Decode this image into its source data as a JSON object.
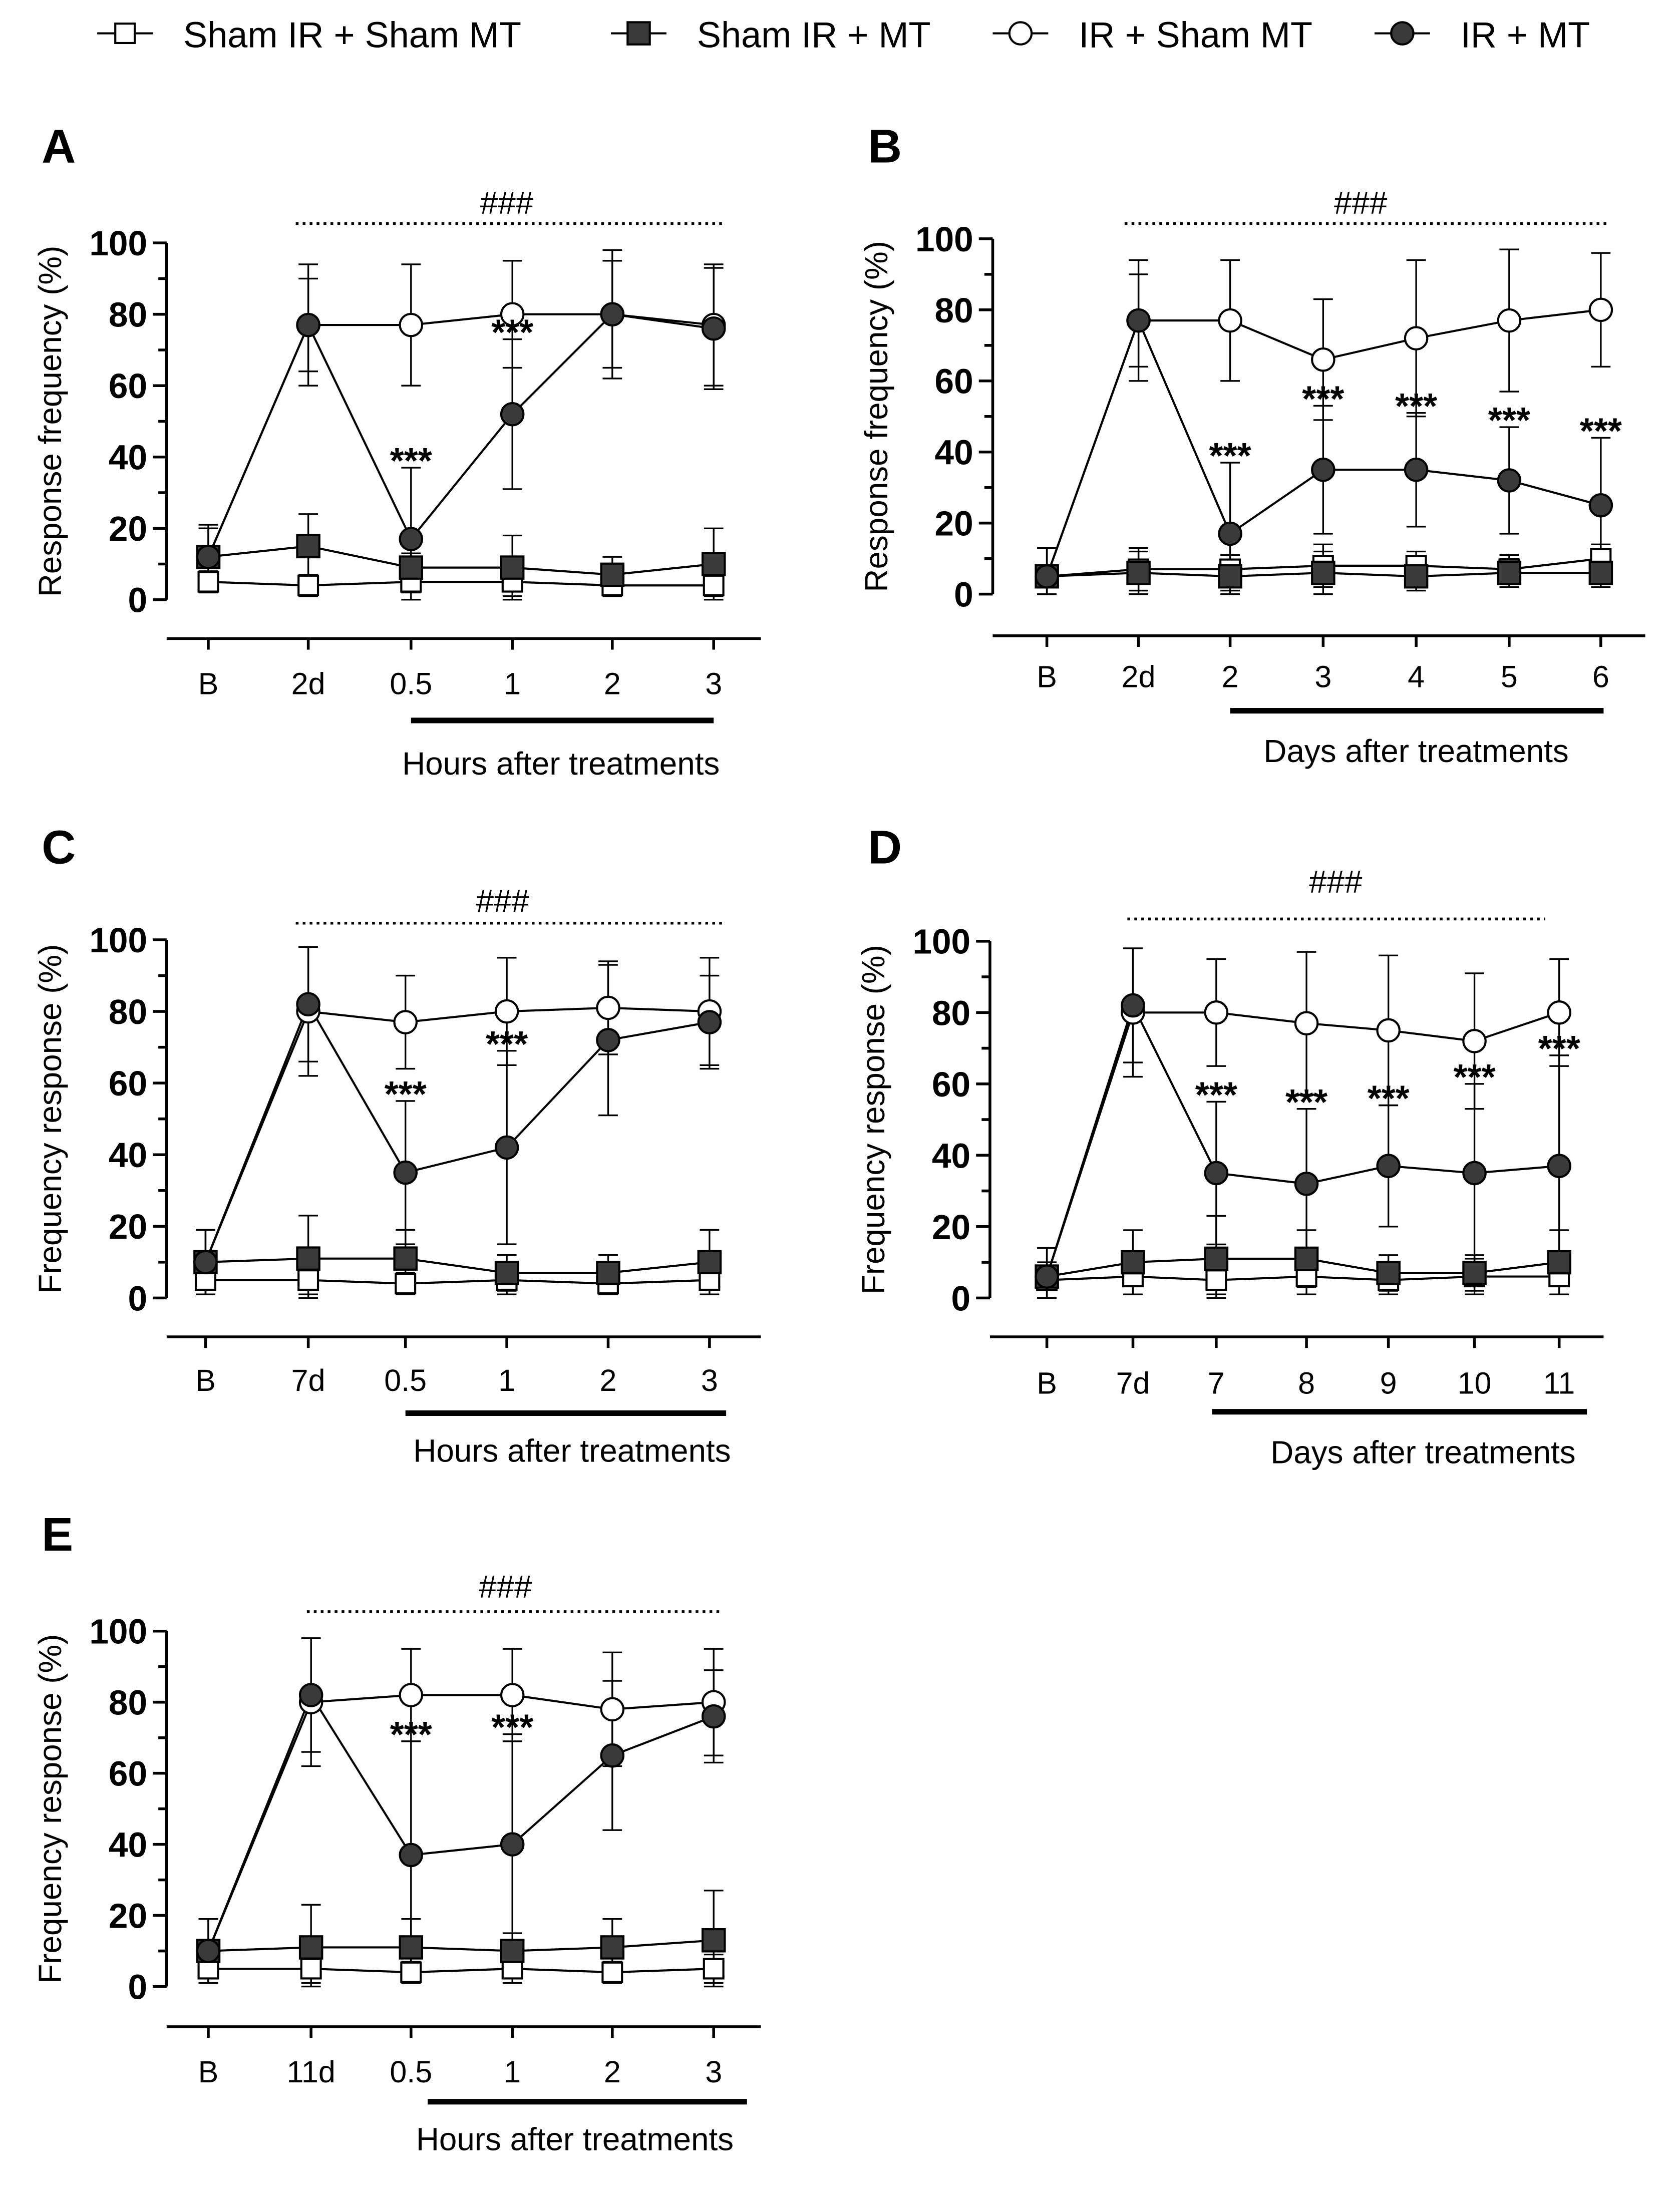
{
  "chart_data": [
    {
      "panel": "A",
      "type": "line",
      "ylabel": "Response frequency (%)",
      "xlabel": "Hours after treatments",
      "categories": [
        "B",
        "2d",
        "0.5",
        "1",
        "2",
        "3"
      ],
      "treated_from_index": 2,
      "ylim": [
        0,
        100
      ],
      "yticks": [
        0,
        20,
        40,
        60,
        80,
        100
      ],
      "hash_label": "###",
      "hash_range": [
        1,
        5
      ],
      "star_label": "***",
      "stars_at": [
        2,
        3
      ],
      "series": [
        {
          "name": "Sham IR + Sham MT",
          "values": [
            5,
            4,
            5,
            5,
            4,
            4
          ],
          "err": [
            3,
            3,
            3,
            4,
            3,
            3
          ]
        },
        {
          "name": "Sham IR + MT",
          "values": [
            12,
            15,
            9,
            9,
            7,
            10
          ],
          "err": [
            9,
            9,
            4,
            9,
            5,
            10
          ]
        },
        {
          "name": "IR + Sham MT",
          "values": [
            12,
            77,
            77,
            80,
            80,
            77
          ],
          "err": [
            8,
            17,
            17,
            15,
            18,
            17
          ]
        },
        {
          "name": "IR + MT",
          "values": [
            12,
            77,
            17,
            52,
            80,
            76
          ],
          "err": [
            8,
            13,
            20,
            21,
            15,
            17
          ]
        }
      ]
    },
    {
      "panel": "B",
      "type": "line",
      "ylabel": "Response frequency (%)",
      "xlabel": "Days after treatments",
      "categories": [
        "B",
        "2d",
        "2",
        "3",
        "4",
        "5",
        "6"
      ],
      "treated_from_index": 2,
      "ylim": [
        0,
        100
      ],
      "yticks": [
        0,
        20,
        40,
        60,
        80,
        100
      ],
      "hash_label": "###",
      "hash_range": [
        1,
        6
      ],
      "star_label": "***",
      "stars_at": [
        2,
        3,
        4,
        5,
        6
      ],
      "series": [
        {
          "name": "Sham IR + Sham MT",
          "values": [
            5,
            7,
            7,
            8,
            8,
            7,
            10
          ],
          "err": [
            8,
            6,
            4,
            6,
            4,
            4,
            4
          ]
        },
        {
          "name": "Sham IR + MT",
          "values": [
            5,
            6,
            5,
            6,
            5,
            6,
            6
          ],
          "err": [
            8,
            6,
            4,
            6,
            4,
            4,
            4
          ]
        },
        {
          "name": "IR + Sham MT",
          "values": [
            5,
            77,
            77,
            66,
            72,
            77,
            80
          ],
          "err": [
            8,
            17,
            17,
            17,
            22,
            20,
            16
          ]
        },
        {
          "name": "IR + MT",
          "values": [
            5,
            77,
            17,
            35,
            35,
            32,
            25
          ],
          "err": [
            8,
            13,
            20,
            18,
            16,
            15,
            19
          ]
        }
      ]
    },
    {
      "panel": "C",
      "type": "line",
      "ylabel": "Frequency response (%)",
      "xlabel": "Hours after treatments",
      "categories": [
        "B",
        "7d",
        "0.5",
        "1",
        "2",
        "3"
      ],
      "treated_from_index": 2,
      "ylim": [
        0,
        100
      ],
      "yticks": [
        0,
        20,
        40,
        60,
        80,
        100
      ],
      "hash_label": "###",
      "hash_range": [
        1,
        5
      ],
      "star_label": "***",
      "stars_at": [
        2,
        3
      ],
      "series": [
        {
          "name": "Sham IR + Sham MT",
          "values": [
            5,
            5,
            4,
            5,
            4,
            5
          ],
          "err": [
            4,
            4,
            3,
            4,
            3,
            4
          ]
        },
        {
          "name": "Sham IR + MT",
          "values": [
            10,
            11,
            11,
            7,
            7,
            10
          ],
          "err": [
            9,
            12,
            8,
            5,
            5,
            9
          ]
        },
        {
          "name": "IR + Sham MT",
          "values": [
            10,
            80,
            77,
            80,
            81,
            80
          ],
          "err": [
            9,
            18,
            13,
            15,
            13,
            15
          ]
        },
        {
          "name": "IR + MT",
          "values": [
            10,
            82,
            35,
            42,
            72,
            77
          ],
          "err": [
            9,
            16,
            20,
            27,
            21,
            13
          ]
        }
      ]
    },
    {
      "panel": "D",
      "type": "line",
      "ylabel": "Frequency response (%)",
      "xlabel": "Days after treatments",
      "categories": [
        "B",
        "7d",
        "7",
        "8",
        "9",
        "10",
        "11"
      ],
      "treated_from_index": 2,
      "ylim": [
        0,
        100
      ],
      "yticks": [
        0,
        20,
        40,
        60,
        80,
        100
      ],
      "hash_label": "###",
      "hash_range": [
        1,
        5.8
      ],
      "star_label": "***",
      "stars_at": [
        2,
        3,
        4,
        5,
        6
      ],
      "series": [
        {
          "name": "Sham IR + Sham MT",
          "values": [
            5,
            6,
            5,
            6,
            5,
            6,
            6
          ],
          "err": [
            5,
            5,
            4,
            5,
            4,
            5,
            5
          ]
        },
        {
          "name": "Sham IR + MT",
          "values": [
            6,
            10,
            11,
            11,
            7,
            7,
            10
          ],
          "err": [
            8,
            9,
            12,
            8,
            5,
            5,
            9
          ]
        },
        {
          "name": "IR + Sham MT",
          "values": [
            6,
            80,
            80,
            77,
            75,
            72,
            80
          ],
          "err": [
            8,
            18,
            15,
            20,
            21,
            19,
            15
          ]
        },
        {
          "name": "IR + MT",
          "values": [
            6,
            82,
            35,
            32,
            37,
            35,
            37
          ],
          "err": [
            8,
            16,
            20,
            21,
            17,
            25,
            31
          ]
        }
      ]
    },
    {
      "panel": "E",
      "type": "line",
      "ylabel": "Frequency response (%)",
      "xlabel": "Hours after treatments",
      "categories": [
        "B",
        "11d",
        "0.5",
        "1",
        "2",
        "3"
      ],
      "treated_from_index": 2,
      "ylim": [
        0,
        100
      ],
      "yticks": [
        0,
        20,
        40,
        60,
        80,
        100
      ],
      "hash_label": "###",
      "hash_range": [
        1,
        5
      ],
      "star_label": "***",
      "stars_at": [
        2,
        3
      ],
      "series": [
        {
          "name": "Sham IR + Sham MT",
          "values": [
            5,
            5,
            4,
            5,
            4,
            5
          ],
          "err": [
            4,
            4,
            3,
            4,
            3,
            4
          ]
        },
        {
          "name": "Sham IR + MT",
          "values": [
            10,
            11,
            11,
            10,
            11,
            13
          ],
          "err": [
            9,
            12,
            8,
            5,
            8,
            14
          ]
        },
        {
          "name": "IR + Sham MT",
          "values": [
            10,
            80,
            82,
            82,
            78,
            80
          ],
          "err": [
            9,
            18,
            13,
            13,
            16,
            15
          ]
        },
        {
          "name": "IR + MT",
          "values": [
            10,
            82,
            37,
            40,
            65,
            76
          ],
          "err": [
            9,
            16,
            32,
            31,
            21,
            13
          ]
        }
      ]
    }
  ],
  "legend": {
    "placement": "top",
    "items": [
      "Sham IR + Sham MT",
      "Sham IR + MT",
      "IR + Sham MT",
      "IR + MT"
    ]
  },
  "colors": {
    "filled": "#3a3a3a",
    "open": "#ffffff",
    "line": "#000000"
  }
}
